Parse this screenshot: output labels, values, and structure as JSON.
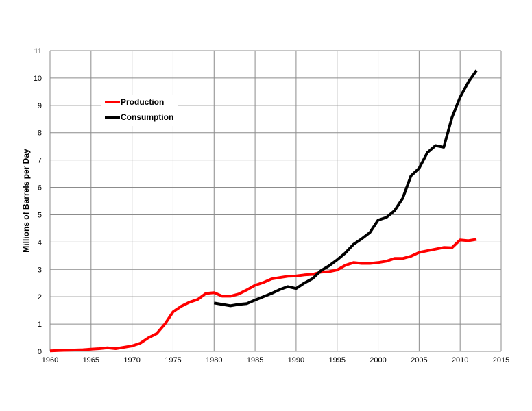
{
  "chart_data": {
    "type": "line",
    "title": "",
    "xlabel": "",
    "ylabel": "Millions of Barrels per Day",
    "xlim": [
      1960,
      2015
    ],
    "ylim": [
      0,
      11
    ],
    "xticks": [
      1960,
      1965,
      1970,
      1975,
      1980,
      1985,
      1990,
      1995,
      2000,
      2005,
      2010,
      2015
    ],
    "yticks": [
      0,
      1,
      2,
      3,
      4,
      5,
      6,
      7,
      8,
      9,
      10,
      11
    ],
    "grid": true,
    "legend_position": "upper-left",
    "series": [
      {
        "name": "Production",
        "color": "#ff0000",
        "x": [
          1960,
          1961,
          1962,
          1963,
          1964,
          1965,
          1966,
          1967,
          1968,
          1969,
          1970,
          1971,
          1972,
          1973,
          1974,
          1975,
          1976,
          1977,
          1978,
          1979,
          1980,
          1981,
          1982,
          1983,
          1984,
          1985,
          1986,
          1987,
          1988,
          1989,
          1990,
          1991,
          1992,
          1993,
          1994,
          1995,
          1996,
          1997,
          1998,
          1999,
          2000,
          2001,
          2002,
          2003,
          2004,
          2005,
          2006,
          2007,
          2008,
          2009,
          2010,
          2011,
          2012
        ],
        "values": [
          0.02,
          0.03,
          0.04,
          0.05,
          0.06,
          0.08,
          0.1,
          0.13,
          0.1,
          0.15,
          0.2,
          0.3,
          0.5,
          0.65,
          1.0,
          1.45,
          1.65,
          1.8,
          1.9,
          2.12,
          2.15,
          2.02,
          2.02,
          2.1,
          2.25,
          2.42,
          2.52,
          2.65,
          2.7,
          2.75,
          2.76,
          2.8,
          2.82,
          2.9,
          2.92,
          2.98,
          3.15,
          3.25,
          3.22,
          3.22,
          3.25,
          3.3,
          3.4,
          3.4,
          3.48,
          3.62,
          3.68,
          3.74,
          3.8,
          3.79,
          4.08,
          4.05,
          4.1
        ]
      },
      {
        "name": "Consumption",
        "color": "#000000",
        "x": [
          1980,
          1981,
          1982,
          1983,
          1984,
          1985,
          1986,
          1987,
          1988,
          1989,
          1990,
          1991,
          1992,
          1993,
          1994,
          1995,
          1996,
          1997,
          1998,
          1999,
          2000,
          2001,
          2002,
          2003,
          2004,
          2005,
          2006,
          2007,
          2008,
          2009,
          2010,
          2011,
          2012
        ],
        "values": [
          1.77,
          1.72,
          1.67,
          1.72,
          1.75,
          1.88,
          2.0,
          2.12,
          2.26,
          2.37,
          2.3,
          2.5,
          2.66,
          2.95,
          3.13,
          3.35,
          3.6,
          3.92,
          4.12,
          4.35,
          4.8,
          4.9,
          5.15,
          5.6,
          6.42,
          6.7,
          7.27,
          7.53,
          7.47,
          8.55,
          9.3,
          9.85,
          10.28
        ]
      }
    ]
  }
}
